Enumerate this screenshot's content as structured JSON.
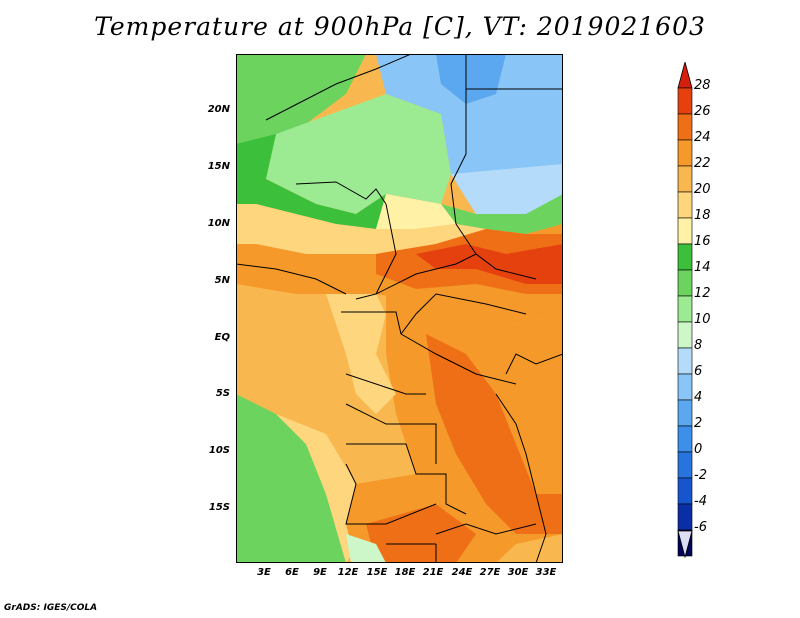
{
  "title": "Temperature at 900hPa [C], VT: 2019021603",
  "credit": "GrADS: IGES/COLA",
  "map": {
    "lat_labels": [
      "20N",
      "15N",
      "10N",
      "5N",
      "EQ",
      "5S",
      "10S",
      "15S"
    ],
    "lon_labels": [
      "3E",
      "6E",
      "9E",
      "12E",
      "15E",
      "18E",
      "21E",
      "24E",
      "27E",
      "30E",
      "33E"
    ],
    "colors": {
      "c_m6": "#03035a",
      "c_m4": "#0a2ea6",
      "c_m2": "#1755cf",
      "c_0": "#2874df",
      "c_2": "#3c90ea",
      "c_4": "#5ba8f0",
      "c_6": "#8ac5f7",
      "c_8": "#b4dcfa",
      "c_10": "#cdf7c8",
      "c_12": "#9ceb92",
      "c_14": "#6cd45e",
      "c_16": "#3cbf3a",
      "c_18": "#fff1a5",
      "c_20": "#fdd67e",
      "c_22": "#f9b84f",
      "c_24": "#f59a2a",
      "c_26": "#ef6f16",
      "c_28": "#e5410e",
      "c_over": "#d4200c"
    }
  },
  "colorbar": {
    "labels": [
      "28",
      "26",
      "24",
      "22",
      "20",
      "18",
      "16",
      "14",
      "12",
      "10",
      "8",
      "6",
      "4",
      "2",
      "0",
      "-2",
      "-4",
      "-6"
    ]
  }
}
